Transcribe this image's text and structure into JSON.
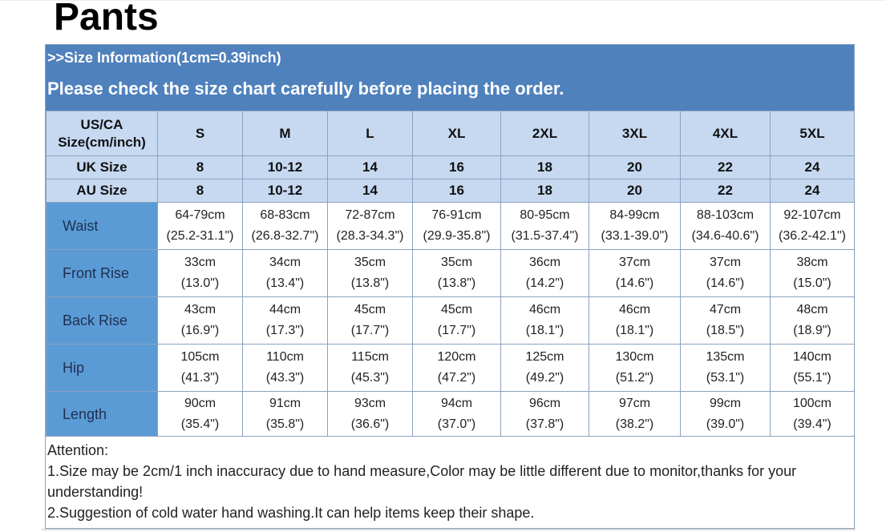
{
  "title": "Pants",
  "banner": {
    "line1": ">>Size Information(1cm=0.39inch)",
    "line2": "Please check the size chart carefully before placing the order."
  },
  "colors": {
    "banner": "#4f81bd",
    "header_cells": "#c6d9f1",
    "row_labels": "#5b9bd5"
  },
  "header": {
    "label": "US/CA Size(cm/inch)",
    "sizes": [
      "S",
      "M",
      "L",
      "XL",
      "2XL",
      "3XL",
      "4XL",
      "5XL"
    ]
  },
  "uk": {
    "label": "UK Size",
    "values": [
      "8",
      "10-12",
      "14",
      "16",
      "18",
      "20",
      "22",
      "24"
    ]
  },
  "au": {
    "label": "AU Size",
    "values": [
      "8",
      "10-12",
      "14",
      "16",
      "18",
      "20",
      "22",
      "24"
    ]
  },
  "rows": [
    {
      "label": "Waist",
      "cm": [
        "64-79cm",
        "68-83cm",
        "72-87cm",
        "76-91cm",
        "80-95cm",
        "84-99cm",
        "88-103cm",
        "92-107cm"
      ],
      "inch": [
        "(25.2-31.1\")",
        "(26.8-32.7\")",
        "(28.3-34.3\")",
        "(29.9-35.8\")",
        "(31.5-37.4\")",
        "(33.1-39.0\")",
        "(34.6-40.6\")",
        "(36.2-42.1\")"
      ]
    },
    {
      "label": "Front Rise",
      "cm": [
        "33cm",
        "34cm",
        "35cm",
        "35cm",
        "36cm",
        "37cm",
        "37cm",
        "38cm"
      ],
      "inch": [
        "(13.0\")",
        "(13.4\")",
        "(13.8\")",
        "(13.8\")",
        "(14.2\")",
        "(14.6\")",
        "(14.6\")",
        "(15.0\")"
      ]
    },
    {
      "label": "Back Rise",
      "cm": [
        "43cm",
        "44cm",
        "45cm",
        "45cm",
        "46cm",
        "46cm",
        "47cm",
        "48cm"
      ],
      "inch": [
        "(16.9\")",
        "(17.3\")",
        "(17.7\")",
        "(17.7\")",
        "(18.1\")",
        "(18.1\")",
        "(18.5\")",
        "(18.9\")"
      ]
    },
    {
      "label": "Hip",
      "cm": [
        "105cm",
        "110cm",
        "115cm",
        "120cm",
        "125cm",
        "130cm",
        "135cm",
        "140cm"
      ],
      "inch": [
        "(41.3\")",
        "(43.3\")",
        "(45.3\")",
        "(47.2\")",
        "(49.2\")",
        "(51.2\")",
        "(53.1\")",
        "(55.1\")"
      ]
    },
    {
      "label": "Length",
      "cm": [
        "90cm",
        "91cm",
        "93cm",
        "94cm",
        "96cm",
        "97cm",
        "99cm",
        "100cm"
      ],
      "inch": [
        "(35.4\")",
        "(35.8\")",
        "(36.6\")",
        "(37.0\")",
        "(37.8\")",
        "(38.2\")",
        "(39.0\")",
        "(39.4\")"
      ]
    }
  ],
  "attention": {
    "heading": "Attention:",
    "note1": "1.Size may be 2cm/1 inch inaccuracy due to hand measure,Color may be little different due to monitor,thanks for your understanding!",
    "note2": "2.Suggestion of cold water hand washing.It can help items keep their shape."
  }
}
